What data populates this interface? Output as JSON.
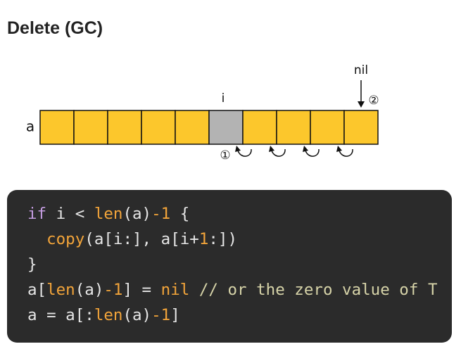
{
  "title": "Delete (GC)",
  "diagram": {
    "array_label": "a",
    "index_label": "i",
    "nil_label": "nil",
    "step1": "①",
    "step2": "②",
    "cells": [
      "#fcc72c",
      "#fcc72c",
      "#fcc72c",
      "#fcc72c",
      "#fcc72c",
      "#b3b3b3",
      "#fcc72c",
      "#fcc72c",
      "#fcc72c",
      "#fcc72c"
    ]
  },
  "code": {
    "lines": [
      [
        {
          "text": "if",
          "color": "#c49ce0"
        },
        {
          "text": " i < ",
          "color": "#e6e6e6"
        },
        {
          "text": "len",
          "color": "#f2a43a"
        },
        {
          "text": "(a)",
          "color": "#e6e6e6"
        },
        {
          "text": "-1",
          "color": "#f2a43a"
        },
        {
          "text": " {",
          "color": "#e6e6e6"
        }
      ],
      [
        {
          "text": "  ",
          "color": "#e6e6e6"
        },
        {
          "text": "copy",
          "color": "#f2a43a"
        },
        {
          "text": "(a[i:], a[i+",
          "color": "#e6e6e6"
        },
        {
          "text": "1",
          "color": "#f2a43a"
        },
        {
          "text": ":])",
          "color": "#e6e6e6"
        }
      ],
      [
        {
          "text": "}",
          "color": "#e6e6e6"
        }
      ],
      [
        {
          "text": "a[",
          "color": "#e6e6e6"
        },
        {
          "text": "len",
          "color": "#f2a43a"
        },
        {
          "text": "(a)",
          "color": "#e6e6e6"
        },
        {
          "text": "-1",
          "color": "#f2a43a"
        },
        {
          "text": "] = ",
          "color": "#e6e6e6"
        },
        {
          "text": "nil",
          "color": "#f2a43a"
        },
        {
          "text": " // or the zero value of T",
          "color": "#d6d3a8"
        }
      ],
      [
        {
          "text": "a = a[:",
          "color": "#e6e6e6"
        },
        {
          "text": "len",
          "color": "#f2a43a"
        },
        {
          "text": "(a)",
          "color": "#e6e6e6"
        },
        {
          "text": "-1",
          "color": "#f2a43a"
        },
        {
          "text": "]",
          "color": "#e6e6e6"
        }
      ]
    ]
  }
}
